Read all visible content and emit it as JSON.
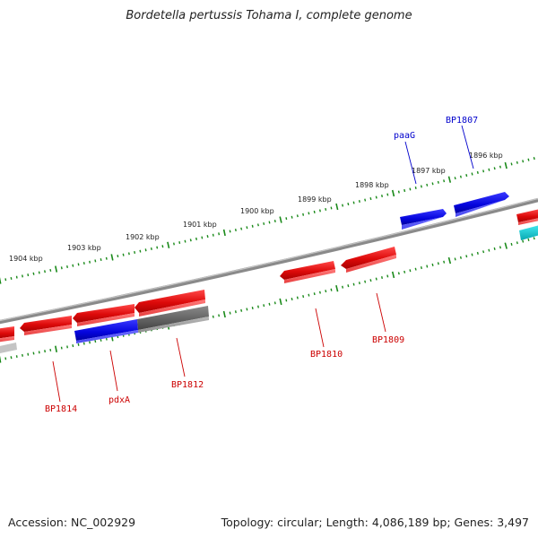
{
  "title": "Bordetella pertussis Tohama I, complete genome",
  "footer": {
    "accession": "Accession: NC_002929",
    "summary": "Topology: circular; Length: 4,086,189 bp; Genes: 3,497"
  },
  "colors": {
    "backbone": "#8a8a8a",
    "ruler": "#1a8a1a",
    "red_gene": "#e01010",
    "blue_gene": "#0a0ae0",
    "gray_gene": "#666666",
    "cyan_gene": "#10c8d0",
    "red_label": "#cc0000",
    "blue_label": "#0000cc"
  },
  "ruler_labels": [
    "1904 kbp",
    "1903 kbp",
    "1902 kbp",
    "1901 kbp",
    "1900 kbp",
    "1899 kbp",
    "1898 kbp",
    "1897 kbp",
    "1896 kbp"
  ],
  "gene_labels": [
    {
      "text": "paaG",
      "color": "blue"
    },
    {
      "text": "BP1807",
      "color": "blue"
    },
    {
      "text": "BP1814",
      "color": "red"
    },
    {
      "text": "pdxA",
      "color": "red"
    },
    {
      "text": "BP1812",
      "color": "red"
    },
    {
      "text": "BP1810",
      "color": "red"
    },
    {
      "text": "BP1809",
      "color": "red"
    }
  ]
}
